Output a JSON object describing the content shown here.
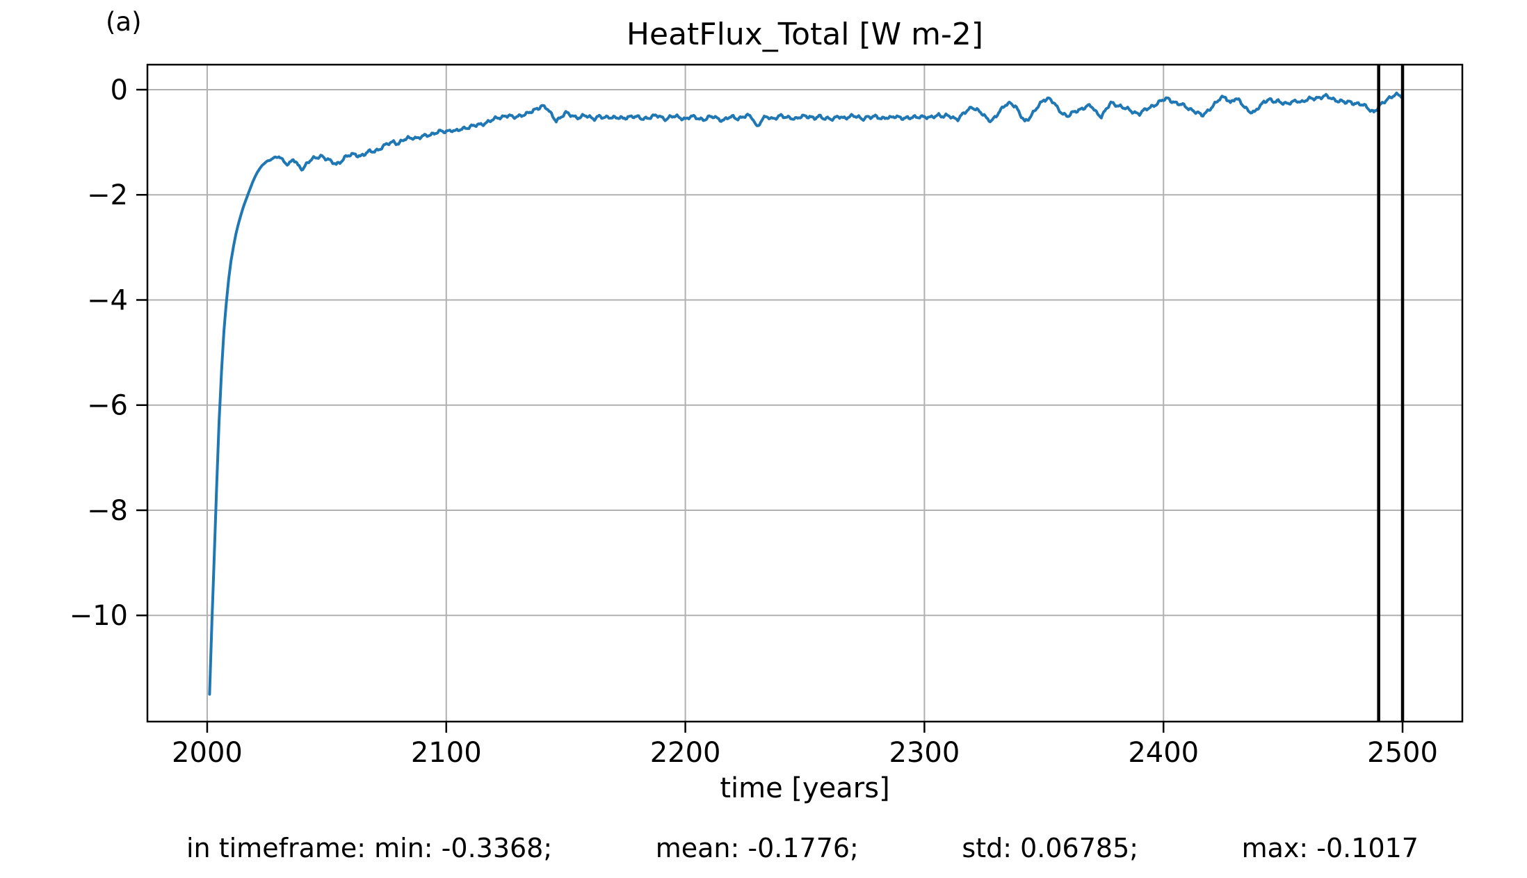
{
  "panel_label": "(a)",
  "title": "HeatFlux_Total [W m-2]",
  "xlabel": "time [years]",
  "stats": {
    "segments": [
      "in timeframe: min: -0.3368;",
      "mean: -0.1776;",
      "std: 0.06785;",
      "max: -0.1017"
    ]
  },
  "chart_data": {
    "type": "line",
    "title": "HeatFlux_Total [W m-2]",
    "xlabel": "time [years]",
    "ylabel": "",
    "xlim": [
      1975,
      2525
    ],
    "ylim": [
      -12.02,
      0.476
    ],
    "xticks": [
      2000,
      2100,
      2200,
      2300,
      2400,
      2500
    ],
    "yticks": [
      0,
      -2,
      -4,
      -6,
      -8,
      -10
    ],
    "grid": true,
    "grid_color": "#b0b0b0",
    "line_color": "#1f77b4",
    "line_width": 4,
    "vlines": {
      "x": [
        2490,
        2500
      ],
      "color": "#000000",
      "width": 4.5
    },
    "timeframe": [
      2490,
      2500
    ],
    "stats_in_timeframe": {
      "min": -0.3368,
      "mean": -0.1776,
      "std": 0.06785,
      "max": -0.1017
    },
    "noise": {
      "amplitude": 0.022,
      "start_x": 2024,
      "ramp_years": 10
    },
    "series": [
      {
        "name": "HeatFlux_Total",
        "points": [
          [
            2001,
            -11.5
          ],
          [
            2001.5,
            -10.8
          ],
          [
            2002,
            -10.1
          ],
          [
            2002.5,
            -9.45
          ],
          [
            2003,
            -8.8
          ],
          [
            2004,
            -7.5
          ],
          [
            2005,
            -6.3
          ],
          [
            2006,
            -5.35
          ],
          [
            2007,
            -4.6
          ],
          [
            2008,
            -4.05
          ],
          [
            2009,
            -3.6
          ],
          [
            2010,
            -3.25
          ],
          [
            2011,
            -2.98
          ],
          [
            2012,
            -2.75
          ],
          [
            2013,
            -2.56
          ],
          [
            2014,
            -2.4
          ],
          [
            2015,
            -2.25
          ],
          [
            2016,
            -2.12
          ],
          [
            2017,
            -2.0
          ],
          [
            2018,
            -1.88
          ],
          [
            2019,
            -1.76
          ],
          [
            2020,
            -1.66
          ],
          [
            2021,
            -1.57
          ],
          [
            2022,
            -1.5
          ],
          [
            2023,
            -1.44
          ],
          [
            2024,
            -1.4
          ],
          [
            2025,
            -1.36
          ],
          [
            2026,
            -1.34
          ],
          [
            2027,
            -1.32
          ],
          [
            2028,
            -1.3
          ],
          [
            2030,
            -1.28
          ],
          [
            2032,
            -1.35
          ],
          [
            2034,
            -1.42
          ],
          [
            2036,
            -1.33
          ],
          [
            2038,
            -1.45
          ],
          [
            2040,
            -1.5
          ],
          [
            2042,
            -1.38
          ],
          [
            2044,
            -1.33
          ],
          [
            2046,
            -1.29
          ],
          [
            2048,
            -1.25
          ],
          [
            2050,
            -1.32
          ],
          [
            2052,
            -1.38
          ],
          [
            2054,
            -1.42
          ],
          [
            2056,
            -1.35
          ],
          [
            2058,
            -1.28
          ],
          [
            2060,
            -1.25
          ],
          [
            2062,
            -1.22
          ],
          [
            2064,
            -1.26
          ],
          [
            2066,
            -1.23
          ],
          [
            2068,
            -1.18
          ],
          [
            2070,
            -1.16
          ],
          [
            2072,
            -1.13
          ],
          [
            2074,
            -1.08
          ],
          [
            2076,
            -1.02
          ],
          [
            2078,
            -0.98
          ],
          [
            2080,
            -1.03
          ],
          [
            2082,
            -0.97
          ],
          [
            2084,
            -0.92
          ],
          [
            2086,
            -0.9
          ],
          [
            2088,
            -0.93
          ],
          [
            2090,
            -0.9
          ],
          [
            2092,
            -0.86
          ],
          [
            2094,
            -0.84
          ],
          [
            2096,
            -0.82
          ],
          [
            2098,
            -0.8
          ],
          [
            2100,
            -0.79
          ],
          [
            2102,
            -0.76
          ],
          [
            2104,
            -0.8
          ],
          [
            2106,
            -0.76
          ],
          [
            2108,
            -0.72
          ],
          [
            2110,
            -0.7
          ],
          [
            2112,
            -0.69
          ],
          [
            2114,
            -0.67
          ],
          [
            2116,
            -0.63
          ],
          [
            2118,
            -0.6
          ],
          [
            2120,
            -0.57
          ],
          [
            2122,
            -0.53
          ],
          [
            2124,
            -0.5
          ],
          [
            2126,
            -0.49
          ],
          [
            2128,
            -0.54
          ],
          [
            2130,
            -0.5
          ],
          [
            2132,
            -0.47
          ],
          [
            2134,
            -0.46
          ],
          [
            2136,
            -0.42
          ],
          [
            2138,
            -0.35
          ],
          [
            2140,
            -0.3
          ],
          [
            2142,
            -0.36
          ],
          [
            2144,
            -0.48
          ],
          [
            2146,
            -0.58
          ],
          [
            2148,
            -0.52
          ],
          [
            2150,
            -0.45
          ],
          [
            2152,
            -0.48
          ],
          [
            2154,
            -0.51
          ],
          [
            2156,
            -0.53
          ],
          [
            2158,
            -0.5
          ],
          [
            2160,
            -0.52
          ],
          [
            2162,
            -0.54
          ],
          [
            2164,
            -0.51
          ],
          [
            2166,
            -0.55
          ],
          [
            2168,
            -0.51
          ],
          [
            2170,
            -0.52
          ],
          [
            2172,
            -0.54
          ],
          [
            2174,
            -0.56
          ],
          [
            2176,
            -0.51
          ],
          [
            2178,
            -0.5
          ],
          [
            2180,
            -0.53
          ],
          [
            2182,
            -0.56
          ],
          [
            2184,
            -0.53
          ],
          [
            2186,
            -0.51
          ],
          [
            2188,
            -0.5
          ],
          [
            2190,
            -0.53
          ],
          [
            2192,
            -0.55
          ],
          [
            2194,
            -0.51
          ],
          [
            2196,
            -0.52
          ],
          [
            2198,
            -0.53
          ],
          [
            2200,
            -0.55
          ],
          [
            2202,
            -0.52
          ],
          [
            2204,
            -0.53
          ],
          [
            2206,
            -0.55
          ],
          [
            2208,
            -0.56
          ],
          [
            2210,
            -0.53
          ],
          [
            2212,
            -0.52
          ],
          [
            2214,
            -0.55
          ],
          [
            2216,
            -0.58
          ],
          [
            2218,
            -0.54
          ],
          [
            2220,
            -0.52
          ],
          [
            2222,
            -0.54
          ],
          [
            2224,
            -0.52
          ],
          [
            2226,
            -0.5
          ],
          [
            2228,
            -0.53
          ],
          [
            2230,
            -0.7
          ],
          [
            2232,
            -0.58
          ],
          [
            2234,
            -0.52
          ],
          [
            2236,
            -0.55
          ],
          [
            2238,
            -0.52
          ],
          [
            2240,
            -0.5
          ],
          [
            2242,
            -0.54
          ],
          [
            2244,
            -0.52
          ],
          [
            2246,
            -0.55
          ],
          [
            2248,
            -0.53
          ],
          [
            2250,
            -0.51
          ],
          [
            2252,
            -0.5
          ],
          [
            2254,
            -0.54
          ],
          [
            2256,
            -0.52
          ],
          [
            2258,
            -0.55
          ],
          [
            2260,
            -0.53
          ],
          [
            2262,
            -0.56
          ],
          [
            2264,
            -0.52
          ],
          [
            2266,
            -0.54
          ],
          [
            2268,
            -0.51
          ],
          [
            2270,
            -0.5
          ],
          [
            2272,
            -0.53
          ],
          [
            2274,
            -0.55
          ],
          [
            2276,
            -0.51
          ],
          [
            2278,
            -0.53
          ],
          [
            2280,
            -0.52
          ],
          [
            2282,
            -0.54
          ],
          [
            2284,
            -0.52
          ],
          [
            2286,
            -0.55
          ],
          [
            2288,
            -0.51
          ],
          [
            2290,
            -0.52
          ],
          [
            2292,
            -0.54
          ],
          [
            2294,
            -0.55
          ],
          [
            2296,
            -0.52
          ],
          [
            2298,
            -0.5
          ],
          [
            2300,
            -0.52
          ],
          [
            2302,
            -0.55
          ],
          [
            2304,
            -0.5
          ],
          [
            2306,
            -0.47
          ],
          [
            2308,
            -0.52
          ],
          [
            2310,
            -0.5
          ],
          [
            2312,
            -0.53
          ],
          [
            2314,
            -0.55
          ],
          [
            2316,
            -0.48
          ],
          [
            2318,
            -0.4
          ],
          [
            2320,
            -0.32
          ],
          [
            2322,
            -0.38
          ],
          [
            2324,
            -0.46
          ],
          [
            2326,
            -0.55
          ],
          [
            2328,
            -0.58
          ],
          [
            2330,
            -0.5
          ],
          [
            2332,
            -0.4
          ],
          [
            2334,
            -0.28
          ],
          [
            2336,
            -0.24
          ],
          [
            2338,
            -0.32
          ],
          [
            2340,
            -0.48
          ],
          [
            2342,
            -0.6
          ],
          [
            2344,
            -0.52
          ],
          [
            2346,
            -0.42
          ],
          [
            2348,
            -0.3
          ],
          [
            2350,
            -0.18
          ],
          [
            2352,
            -0.16
          ],
          [
            2354,
            -0.25
          ],
          [
            2356,
            -0.38
          ],
          [
            2358,
            -0.45
          ],
          [
            2360,
            -0.5
          ],
          [
            2362,
            -0.45
          ],
          [
            2364,
            -0.4
          ],
          [
            2366,
            -0.35
          ],
          [
            2368,
            -0.31
          ],
          [
            2370,
            -0.33
          ],
          [
            2372,
            -0.44
          ],
          [
            2374,
            -0.5
          ],
          [
            2376,
            -0.38
          ],
          [
            2378,
            -0.26
          ],
          [
            2380,
            -0.28
          ],
          [
            2382,
            -0.31
          ],
          [
            2384,
            -0.36
          ],
          [
            2386,
            -0.4
          ],
          [
            2388,
            -0.43
          ],
          [
            2390,
            -0.45
          ],
          [
            2392,
            -0.4
          ],
          [
            2394,
            -0.35
          ],
          [
            2396,
            -0.29
          ],
          [
            2398,
            -0.24
          ],
          [
            2400,
            -0.2
          ],
          [
            2402,
            -0.17
          ],
          [
            2404,
            -0.22
          ],
          [
            2406,
            -0.27
          ],
          [
            2408,
            -0.3
          ],
          [
            2410,
            -0.34
          ],
          [
            2412,
            -0.38
          ],
          [
            2414,
            -0.44
          ],
          [
            2416,
            -0.5
          ],
          [
            2418,
            -0.42
          ],
          [
            2420,
            -0.33
          ],
          [
            2422,
            -0.26
          ],
          [
            2424,
            -0.16
          ],
          [
            2426,
            -0.13
          ],
          [
            2428,
            -0.25
          ],
          [
            2430,
            -0.18
          ],
          [
            2432,
            -0.22
          ],
          [
            2434,
            -0.32
          ],
          [
            2436,
            -0.42
          ],
          [
            2438,
            -0.45
          ],
          [
            2440,
            -0.32
          ],
          [
            2442,
            -0.22
          ],
          [
            2444,
            -0.19
          ],
          [
            2446,
            -0.24
          ],
          [
            2448,
            -0.21
          ],
          [
            2450,
            -0.24
          ],
          [
            2452,
            -0.28
          ],
          [
            2454,
            -0.24
          ],
          [
            2456,
            -0.2
          ],
          [
            2458,
            -0.23
          ],
          [
            2460,
            -0.2
          ],
          [
            2462,
            -0.17
          ],
          [
            2464,
            -0.15
          ],
          [
            2466,
            -0.14
          ],
          [
            2468,
            -0.13
          ],
          [
            2470,
            -0.16
          ],
          [
            2472,
            -0.19
          ],
          [
            2474,
            -0.22
          ],
          [
            2476,
            -0.25
          ],
          [
            2478,
            -0.23
          ],
          [
            2480,
            -0.25
          ],
          [
            2482,
            -0.28
          ],
          [
            2484,
            -0.31
          ],
          [
            2486,
            -0.36
          ],
          [
            2488,
            -0.42
          ],
          [
            2490,
            -0.3368
          ],
          [
            2492,
            -0.25
          ],
          [
            2494,
            -0.16
          ],
          [
            2496,
            -0.11
          ],
          [
            2497,
            -0.1017
          ],
          [
            2498,
            -0.11
          ],
          [
            2499,
            -0.12
          ],
          [
            2500,
            -0.14
          ]
        ]
      }
    ]
  }
}
